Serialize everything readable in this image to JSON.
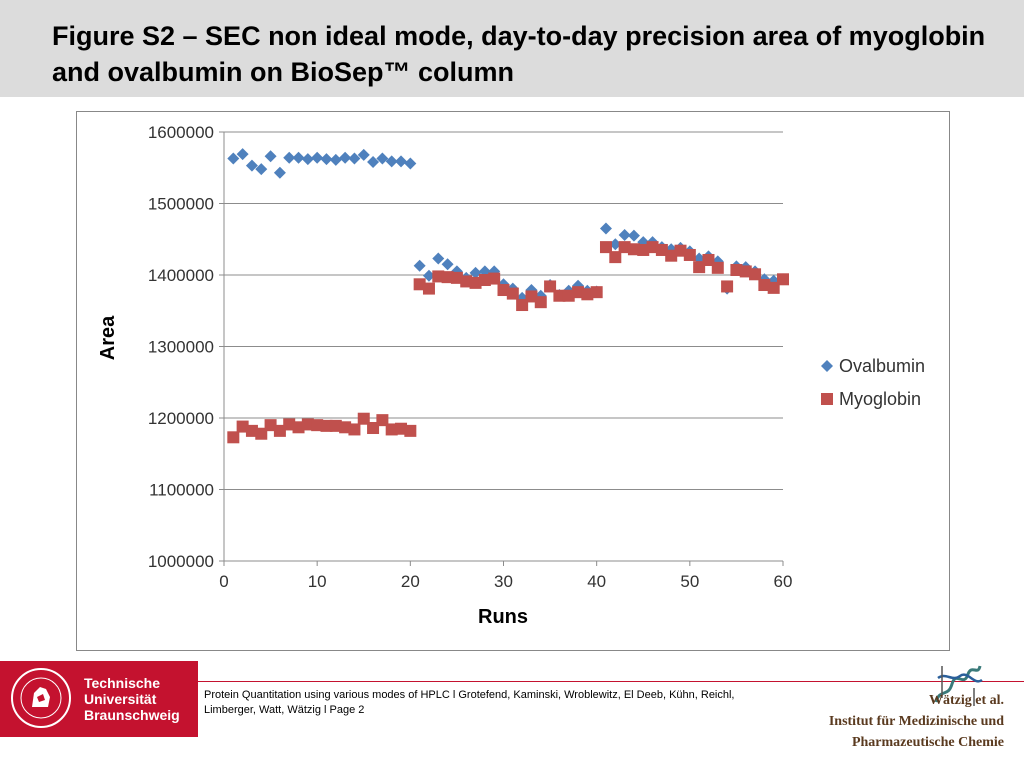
{
  "header": {
    "title": "Figure S2 – SEC non ideal mode, day-to-day precision area of myoglobin and ovalbumin on BioSep™ column"
  },
  "chart_data": {
    "type": "scatter",
    "xlabel": "Runs",
    "ylabel": "Area",
    "xlim": [
      0,
      60
    ],
    "ylim": [
      1000000,
      1600000
    ],
    "xticks": [
      "0",
      "10",
      "20",
      "30",
      "40",
      "50",
      "60"
    ],
    "yticks": [
      "1000000",
      "1100000",
      "1200000",
      "1300000",
      "1400000",
      "1500000",
      "1600000"
    ],
    "grid": "horizontal",
    "legend_position": "right",
    "series": [
      {
        "name": "Ovalbumin",
        "color": "#4f81bd",
        "marker": "diamond",
        "points": [
          [
            1,
            1563000
          ],
          [
            2,
            1569000
          ],
          [
            3,
            1553000
          ],
          [
            4,
            1548000
          ],
          [
            5,
            1566000
          ],
          [
            6,
            1543000
          ],
          [
            7,
            1564000
          ],
          [
            8,
            1564000
          ],
          [
            9,
            1562000
          ],
          [
            10,
            1564000
          ],
          [
            11,
            1562000
          ],
          [
            12,
            1561000
          ],
          [
            13,
            1564000
          ],
          [
            14,
            1563000
          ],
          [
            15,
            1568000
          ],
          [
            16,
            1558000
          ],
          [
            17,
            1563000
          ],
          [
            18,
            1559000
          ],
          [
            19,
            1559000
          ],
          [
            20,
            1556000
          ],
          [
            21,
            1413000
          ],
          [
            22,
            1399000
          ],
          [
            23,
            1423000
          ],
          [
            24,
            1415000
          ],
          [
            25,
            1405000
          ],
          [
            26,
            1396000
          ],
          [
            27,
            1403000
          ],
          [
            28,
            1405000
          ],
          [
            29,
            1405000
          ],
          [
            30,
            1387000
          ],
          [
            31,
            1381000
          ],
          [
            32,
            1368000
          ],
          [
            33,
            1379000
          ],
          [
            34,
            1371000
          ],
          [
            35,
            1386000
          ],
          [
            36,
            1372000
          ],
          [
            37,
            1378000
          ],
          [
            38,
            1385000
          ],
          [
            39,
            1378000
          ],
          [
            40,
            1377000
          ],
          [
            41,
            1465000
          ],
          [
            42,
            1443000
          ],
          [
            43,
            1456000
          ],
          [
            44,
            1455000
          ],
          [
            45,
            1446000
          ],
          [
            46,
            1446000
          ],
          [
            47,
            1439000
          ],
          [
            48,
            1436000
          ],
          [
            49,
            1438000
          ],
          [
            50,
            1433000
          ],
          [
            51,
            1423000
          ],
          [
            52,
            1426000
          ],
          [
            53,
            1419000
          ],
          [
            54,
            1381000
          ],
          [
            55,
            1412000
          ],
          [
            56,
            1411000
          ],
          [
            57,
            1405000
          ],
          [
            58,
            1394000
          ],
          [
            59,
            1392000
          ],
          [
            60,
            1394000
          ]
        ]
      },
      {
        "name": "Myoglobin",
        "color": "#c0504d",
        "marker": "square",
        "points": [
          [
            1,
            1173000
          ],
          [
            2,
            1188000
          ],
          [
            3,
            1182000
          ],
          [
            4,
            1178000
          ],
          [
            5,
            1190000
          ],
          [
            6,
            1182000
          ],
          [
            7,
            1191000
          ],
          [
            8,
            1187000
          ],
          [
            9,
            1191000
          ],
          [
            10,
            1190000
          ],
          [
            11,
            1189000
          ],
          [
            12,
            1189000
          ],
          [
            13,
            1187000
          ],
          [
            14,
            1184000
          ],
          [
            15,
            1199000
          ],
          [
            16,
            1186000
          ],
          [
            17,
            1197000
          ],
          [
            18,
            1184000
          ],
          [
            19,
            1185000
          ],
          [
            20,
            1182000
          ],
          [
            21,
            1387000
          ],
          [
            22,
            1381000
          ],
          [
            23,
            1398000
          ],
          [
            24,
            1397000
          ],
          [
            25,
            1396000
          ],
          [
            26,
            1391000
          ],
          [
            27,
            1389000
          ],
          [
            28,
            1393000
          ],
          [
            29,
            1395000
          ],
          [
            30,
            1379000
          ],
          [
            31,
            1374000
          ],
          [
            32,
            1358000
          ],
          [
            33,
            1370000
          ],
          [
            34,
            1362000
          ],
          [
            35,
            1384000
          ],
          [
            36,
            1371000
          ],
          [
            37,
            1371000
          ],
          [
            38,
            1376000
          ],
          [
            39,
            1373000
          ],
          [
            40,
            1376000
          ],
          [
            41,
            1439000
          ],
          [
            42,
            1425000
          ],
          [
            43,
            1439000
          ],
          [
            44,
            1436000
          ],
          [
            45,
            1435000
          ],
          [
            46,
            1439000
          ],
          [
            47,
            1435000
          ],
          [
            48,
            1427000
          ],
          [
            49,
            1434000
          ],
          [
            50,
            1428000
          ],
          [
            51,
            1411000
          ],
          [
            52,
            1421000
          ],
          [
            53,
            1410000
          ],
          [
            54,
            1384000
          ],
          [
            55,
            1407000
          ],
          [
            56,
            1405000
          ],
          [
            57,
            1401000
          ],
          [
            58,
            1386000
          ],
          [
            59,
            1382000
          ],
          [
            60,
            1394000
          ]
        ]
      }
    ]
  },
  "footer": {
    "university_lines": [
      "Technische",
      "Universität",
      "Braunschweig"
    ],
    "citation_line1": "Protein Quantitation using various modes of HPLC l Grotefend, Kaminski, Wroblewitz, El Deeb, Kühn, Reichl,",
    "citation_line2": "Limberger, Watt, Wätzig l Page 2",
    "author": "Wätzig et al.",
    "institute_line1": "Institut für Medizinische und",
    "institute_line2": "Pharmazeutische Chemie"
  },
  "colors": {
    "brand_red": "#c4122f",
    "title_bar": "#dcdcdc",
    "institute_text": "#5a3a1f"
  }
}
